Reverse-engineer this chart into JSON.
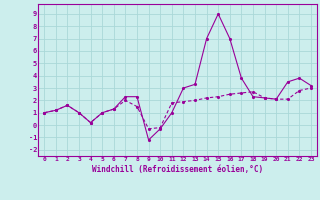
{
  "xlabel": "Windchill (Refroidissement éolien,°C)",
  "background_color": "#cceeed",
  "grid_color": "#aad8d8",
  "line_color": "#990099",
  "x_values": [
    0,
    1,
    2,
    3,
    4,
    5,
    6,
    7,
    8,
    9,
    10,
    11,
    12,
    13,
    14,
    15,
    16,
    17,
    18,
    19,
    20,
    21,
    22,
    23
  ],
  "series1": [
    1.0,
    1.2,
    1.6,
    1.0,
    0.2,
    1.0,
    1.3,
    2.3,
    2.3,
    -1.2,
    -0.3,
    1.0,
    3.0,
    3.3,
    7.0,
    9.0,
    7.0,
    3.8,
    2.3,
    2.2,
    2.1,
    3.5,
    3.8,
    3.2
  ],
  "series2": [
    1.0,
    1.2,
    1.6,
    1.0,
    0.2,
    1.0,
    1.3,
    2.0,
    1.5,
    -0.3,
    -0.2,
    1.8,
    1.9,
    2.0,
    2.2,
    2.3,
    2.5,
    2.6,
    2.7,
    2.2,
    2.1,
    2.1,
    2.8,
    3.0
  ],
  "ylim": [
    -2.5,
    9.8
  ],
  "xlim": [
    -0.5,
    23.5
  ],
  "yticks": [
    -2,
    -1,
    0,
    1,
    2,
    3,
    4,
    5,
    6,
    7,
    8,
    9
  ],
  "xticks": [
    0,
    1,
    2,
    3,
    4,
    5,
    6,
    7,
    8,
    9,
    10,
    11,
    12,
    13,
    14,
    15,
    16,
    17,
    18,
    19,
    20,
    21,
    22,
    23
  ]
}
